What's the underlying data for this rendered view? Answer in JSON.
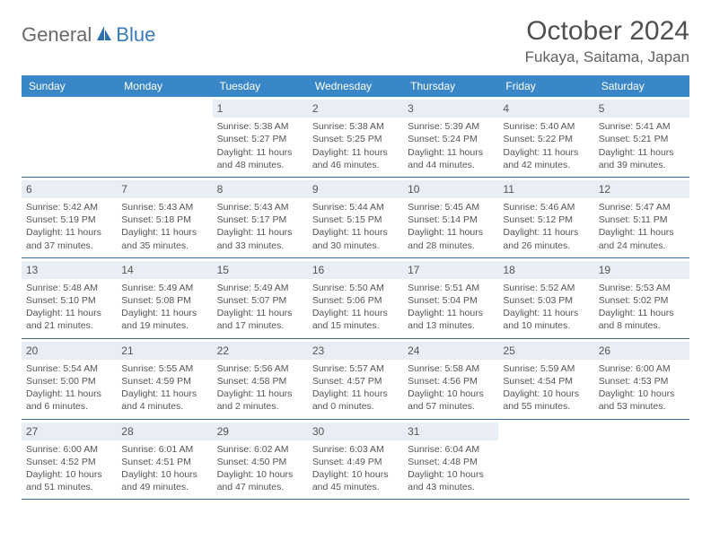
{
  "logo": {
    "part1": "General",
    "part2": "Blue"
  },
  "title": "October 2024",
  "location": "Fukaya, Saitama, Japan",
  "colors": {
    "header_bg": "#3a87c7",
    "daynum_bg": "#e8eef3",
    "rule": "#3a6a9a",
    "logo_accent": "#2a6fb0"
  },
  "daysOfWeek": [
    "Sunday",
    "Monday",
    "Tuesday",
    "Wednesday",
    "Thursday",
    "Friday",
    "Saturday"
  ],
  "weeks": [
    [
      {
        "n": "",
        "lines": []
      },
      {
        "n": "",
        "lines": []
      },
      {
        "n": "1",
        "lines": [
          "Sunrise: 5:38 AM",
          "Sunset: 5:27 PM",
          "Daylight: 11 hours and 48 minutes."
        ]
      },
      {
        "n": "2",
        "lines": [
          "Sunrise: 5:38 AM",
          "Sunset: 5:25 PM",
          "Daylight: 11 hours and 46 minutes."
        ]
      },
      {
        "n": "3",
        "lines": [
          "Sunrise: 5:39 AM",
          "Sunset: 5:24 PM",
          "Daylight: 11 hours and 44 minutes."
        ]
      },
      {
        "n": "4",
        "lines": [
          "Sunrise: 5:40 AM",
          "Sunset: 5:22 PM",
          "Daylight: 11 hours and 42 minutes."
        ]
      },
      {
        "n": "5",
        "lines": [
          "Sunrise: 5:41 AM",
          "Sunset: 5:21 PM",
          "Daylight: 11 hours and 39 minutes."
        ]
      }
    ],
    [
      {
        "n": "6",
        "lines": [
          "Sunrise: 5:42 AM",
          "Sunset: 5:19 PM",
          "Daylight: 11 hours and 37 minutes."
        ]
      },
      {
        "n": "7",
        "lines": [
          "Sunrise: 5:43 AM",
          "Sunset: 5:18 PM",
          "Daylight: 11 hours and 35 minutes."
        ]
      },
      {
        "n": "8",
        "lines": [
          "Sunrise: 5:43 AM",
          "Sunset: 5:17 PM",
          "Daylight: 11 hours and 33 minutes."
        ]
      },
      {
        "n": "9",
        "lines": [
          "Sunrise: 5:44 AM",
          "Sunset: 5:15 PM",
          "Daylight: 11 hours and 30 minutes."
        ]
      },
      {
        "n": "10",
        "lines": [
          "Sunrise: 5:45 AM",
          "Sunset: 5:14 PM",
          "Daylight: 11 hours and 28 minutes."
        ]
      },
      {
        "n": "11",
        "lines": [
          "Sunrise: 5:46 AM",
          "Sunset: 5:12 PM",
          "Daylight: 11 hours and 26 minutes."
        ]
      },
      {
        "n": "12",
        "lines": [
          "Sunrise: 5:47 AM",
          "Sunset: 5:11 PM",
          "Daylight: 11 hours and 24 minutes."
        ]
      }
    ],
    [
      {
        "n": "13",
        "lines": [
          "Sunrise: 5:48 AM",
          "Sunset: 5:10 PM",
          "Daylight: 11 hours and 21 minutes."
        ]
      },
      {
        "n": "14",
        "lines": [
          "Sunrise: 5:49 AM",
          "Sunset: 5:08 PM",
          "Daylight: 11 hours and 19 minutes."
        ]
      },
      {
        "n": "15",
        "lines": [
          "Sunrise: 5:49 AM",
          "Sunset: 5:07 PM",
          "Daylight: 11 hours and 17 minutes."
        ]
      },
      {
        "n": "16",
        "lines": [
          "Sunrise: 5:50 AM",
          "Sunset: 5:06 PM",
          "Daylight: 11 hours and 15 minutes."
        ]
      },
      {
        "n": "17",
        "lines": [
          "Sunrise: 5:51 AM",
          "Sunset: 5:04 PM",
          "Daylight: 11 hours and 13 minutes."
        ]
      },
      {
        "n": "18",
        "lines": [
          "Sunrise: 5:52 AM",
          "Sunset: 5:03 PM",
          "Daylight: 11 hours and 10 minutes."
        ]
      },
      {
        "n": "19",
        "lines": [
          "Sunrise: 5:53 AM",
          "Sunset: 5:02 PM",
          "Daylight: 11 hours and 8 minutes."
        ]
      }
    ],
    [
      {
        "n": "20",
        "lines": [
          "Sunrise: 5:54 AM",
          "Sunset: 5:00 PM",
          "Daylight: 11 hours and 6 minutes."
        ]
      },
      {
        "n": "21",
        "lines": [
          "Sunrise: 5:55 AM",
          "Sunset: 4:59 PM",
          "Daylight: 11 hours and 4 minutes."
        ]
      },
      {
        "n": "22",
        "lines": [
          "Sunrise: 5:56 AM",
          "Sunset: 4:58 PM",
          "Daylight: 11 hours and 2 minutes."
        ]
      },
      {
        "n": "23",
        "lines": [
          "Sunrise: 5:57 AM",
          "Sunset: 4:57 PM",
          "Daylight: 11 hours and 0 minutes."
        ]
      },
      {
        "n": "24",
        "lines": [
          "Sunrise: 5:58 AM",
          "Sunset: 4:56 PM",
          "Daylight: 10 hours and 57 minutes."
        ]
      },
      {
        "n": "25",
        "lines": [
          "Sunrise: 5:59 AM",
          "Sunset: 4:54 PM",
          "Daylight: 10 hours and 55 minutes."
        ]
      },
      {
        "n": "26",
        "lines": [
          "Sunrise: 6:00 AM",
          "Sunset: 4:53 PM",
          "Daylight: 10 hours and 53 minutes."
        ]
      }
    ],
    [
      {
        "n": "27",
        "lines": [
          "Sunrise: 6:00 AM",
          "Sunset: 4:52 PM",
          "Daylight: 10 hours and 51 minutes."
        ]
      },
      {
        "n": "28",
        "lines": [
          "Sunrise: 6:01 AM",
          "Sunset: 4:51 PM",
          "Daylight: 10 hours and 49 minutes."
        ]
      },
      {
        "n": "29",
        "lines": [
          "Sunrise: 6:02 AM",
          "Sunset: 4:50 PM",
          "Daylight: 10 hours and 47 minutes."
        ]
      },
      {
        "n": "30",
        "lines": [
          "Sunrise: 6:03 AM",
          "Sunset: 4:49 PM",
          "Daylight: 10 hours and 45 minutes."
        ]
      },
      {
        "n": "31",
        "lines": [
          "Sunrise: 6:04 AM",
          "Sunset: 4:48 PM",
          "Daylight: 10 hours and 43 minutes."
        ]
      },
      {
        "n": "",
        "lines": []
      },
      {
        "n": "",
        "lines": []
      }
    ]
  ]
}
